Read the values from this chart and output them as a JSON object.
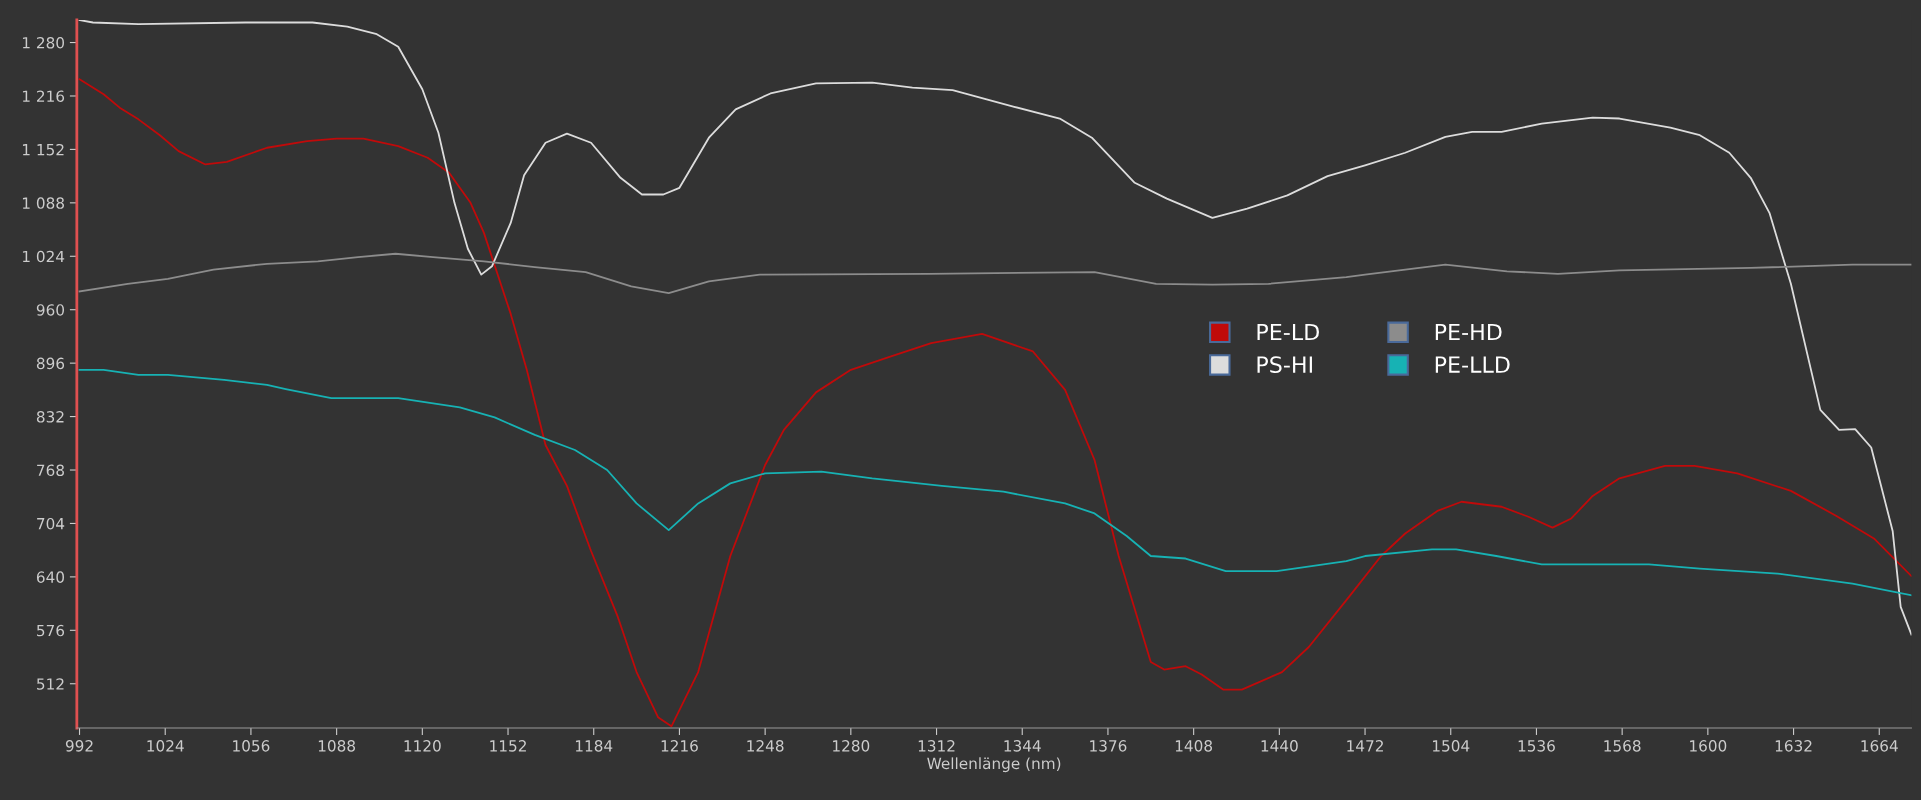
{
  "chart_data": {
    "type": "line",
    "xlabel": "Wellenlänge (nm)",
    "xlim": [
      991,
      1676
    ],
    "ylim": [
      459,
      1307
    ],
    "xticks": [
      992,
      1024,
      1056,
      1088,
      1120,
      1152,
      1184,
      1216,
      1248,
      1280,
      1312,
      1344,
      1376,
      1408,
      1440,
      1472,
      1504,
      1536,
      1568,
      1600,
      1632,
      1664
    ],
    "yticks": [
      512,
      576,
      640,
      704,
      768,
      832,
      896,
      960,
      {
        "value": 1024,
        "label": "1 024"
      },
      {
        "value": 1088,
        "label": "1 088"
      },
      {
        "value": 1152,
        "label": "1 152"
      },
      {
        "value": 1216,
        "label": "1 216"
      },
      {
        "value": 1280,
        "label": "1 280"
      }
    ],
    "grid": false,
    "legend": "right",
    "marker": "none",
    "line_style": "solid",
    "series": [
      {
        "name": "PE-LD",
        "color": "#c00a0a",
        "x": [
          992,
          1001,
          1007,
          1014,
          1022,
          1029,
          1039,
          1047,
          1062,
          1077,
          1088,
          1098,
          1111,
          1122,
          1130,
          1138,
          1143,
          1153,
          1159,
          1166,
          1174,
          1183,
          1193,
          1200,
          1208,
          1213,
          1223,
          1235,
          1248,
          1255,
          1267,
          1280,
          1295,
          1310,
          1329,
          1348,
          1360,
          1371,
          1380,
          1392,
          1397,
          1405,
          1411,
          1419,
          1426,
          1441,
          1451,
          1466,
          1478,
          1487,
          1499,
          1508,
          1523,
          1533,
          1542,
          1549,
          1557,
          1567,
          1584,
          1595,
          1611,
          1631,
          1648,
          1662,
          1676
        ],
        "values": [
          1236,
          1218,
          1202,
          1188,
          1169,
          1150,
          1134,
          1137,
          1154,
          1162,
          1165,
          1165,
          1156,
          1142,
          1124,
          1088,
          1052,
          955,
          888,
          798,
          749,
          671,
          592,
          526,
          472,
          461,
          526,
          665,
          774,
          816,
          861,
          888,
          904,
          920,
          931,
          910,
          864,
          780,
          665,
          538,
          529,
          533,
          523,
          505,
          505,
          526,
          556,
          616,
          665,
          692,
          719,
          730,
          724,
          712,
          699,
          710,
          737,
          758,
          773,
          773,
          764,
          743,
          713,
          686,
          641
        ]
      },
      {
        "name": "PS-HI",
        "color": "#dcdcdc",
        "x": [
          992,
          997,
          1014,
          1054,
          1079,
          1092,
          1103,
          1111,
          1120,
          1126,
          1132,
          1137,
          1142,
          1146,
          1153,
          1158,
          1166,
          1174,
          1183,
          1194,
          1202,
          1210,
          1216,
          1227,
          1237,
          1250,
          1267,
          1288,
          1303,
          1318,
          1341,
          1358,
          1370,
          1386,
          1398,
          1415,
          1428,
          1443,
          1458,
          1472,
          1487,
          1502,
          1512,
          1523,
          1538,
          1557,
          1567,
          1586,
          1597,
          1608,
          1616,
          1623,
          1631,
          1642,
          1649,
          1655,
          1661,
          1669,
          1672,
          1676
        ],
        "values": [
          1307,
          1304,
          1302,
          1304,
          1304,
          1299,
          1290,
          1275,
          1224,
          1172,
          1088,
          1033,
          1002,
          1012,
          1064,
          1121,
          1160,
          1171,
          1160,
          1118,
          1098,
          1098,
          1106,
          1166,
          1200,
          1219,
          1231,
          1232,
          1226,
          1223,
          1203,
          1189,
          1166,
          1112,
          1093,
          1070,
          1081,
          1097,
          1120,
          1133,
          1148,
          1167,
          1173,
          1173,
          1183,
          1190,
          1189,
          1178,
          1169,
          1148,
          1118,
          1076,
          991,
          840,
          816,
          817,
          795,
          695,
          604,
          571
        ]
      },
      {
        "name": "PE-HD",
        "color": "#8c8c8c",
        "x": [
          992,
          1010,
          1025,
          1042,
          1062,
          1081,
          1096,
          1110,
          1124,
          1143,
          1162,
          1181,
          1198,
          1212,
          1227,
          1246,
          1309,
          1371,
          1394,
          1415,
          1436,
          1465,
          1472,
          1502,
          1525,
          1544,
          1567,
          1616,
          1654,
          1676
        ],
        "values": [
          982,
          991,
          997,
          1008,
          1015,
          1018,
          1023,
          1027,
          1023,
          1018,
          1011,
          1005,
          988,
          980,
          994,
          1002,
          1003,
          1005,
          991,
          990,
          991,
          999,
          1002,
          1014,
          1006,
          1003,
          1007,
          1010,
          1014,
          1014
        ]
      },
      {
        "name": "PE-LLD",
        "color": "#17b2b4",
        "x": [
          992,
          1001,
          1014,
          1025,
          1046,
          1062,
          1069,
          1086,
          1111,
          1134,
          1147,
          1162,
          1177,
          1189,
          1200,
          1212,
          1223,
          1235,
          1248,
          1269,
          1288,
          1314,
          1337,
          1360,
          1371,
          1383,
          1392,
          1405,
          1420,
          1439,
          1465,
          1472,
          1497,
          1506,
          1521,
          1538,
          1578,
          1597,
          1626,
          1654,
          1676
        ],
        "values": [
          888,
          888,
          882,
          882,
          876,
          870,
          865,
          854,
          854,
          843,
          831,
          810,
          792,
          768,
          728,
          696,
          728,
          752,
          764,
          766,
          758,
          749,
          742,
          728,
          716,
          689,
          665,
          662,
          647,
          647,
          659,
          665,
          673,
          673,
          665,
          655,
          655,
          650,
          644,
          632,
          618
        ]
      }
    ]
  }
}
